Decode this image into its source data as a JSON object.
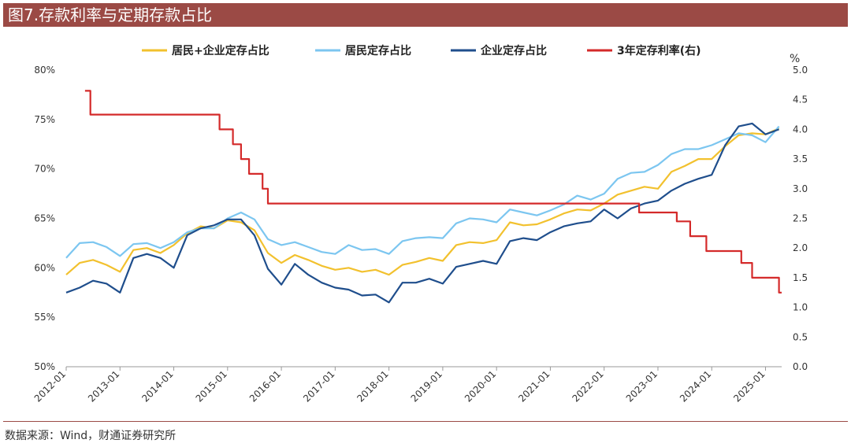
{
  "header": {
    "title": "图7.存款利率与定期存款占比"
  },
  "footer": {
    "source": "数据来源：Wind，财通证券研究所"
  },
  "chart_data": {
    "type": "line",
    "title": "图7.存款利率与定期存款占比",
    "x_ticks": [
      "2012-01",
      "2013-01",
      "2014-01",
      "2015-01",
      "2016-01",
      "2017-01",
      "2018-01",
      "2019-01",
      "2020-01",
      "2021-01",
      "2022-01",
      "2023-01",
      "2024-01",
      "2025-01"
    ],
    "x_range": [
      2012.0,
      2025.3
    ],
    "y_left": {
      "ticks": [
        "50%",
        "55%",
        "60%",
        "65%",
        "70%",
        "75%",
        "80%"
      ],
      "min": 50,
      "max": 80
    },
    "y_right": {
      "ticks": [
        "0.0",
        "0.5",
        "1.0",
        "1.5",
        "2.0",
        "2.5",
        "3.0",
        "3.5",
        "4.0",
        "4.5",
        "5.0"
      ],
      "min": 0,
      "max": 5,
      "unit": "%"
    },
    "grid": false,
    "legend_position": "top",
    "series": [
      {
        "name": "居民+企业定存占比",
        "axis": "left",
        "color": "#f2c12e",
        "x": [
          2012.0,
          2012.25,
          2012.5,
          2012.75,
          2013.0,
          2013.25,
          2013.5,
          2013.75,
          2014.0,
          2014.25,
          2014.5,
          2014.75,
          2015.0,
          2015.25,
          2015.5,
          2015.75,
          2016.0,
          2016.25,
          2016.5,
          2016.75,
          2017.0,
          2017.25,
          2017.5,
          2017.75,
          2018.0,
          2018.25,
          2018.5,
          2018.75,
          2019.0,
          2019.25,
          2019.5,
          2019.75,
          2020.0,
          2020.25,
          2020.5,
          2020.75,
          2021.0,
          2021.25,
          2021.5,
          2021.75,
          2022.0,
          2022.25,
          2022.5,
          2022.75,
          2023.0,
          2023.25,
          2023.5,
          2023.75,
          2024.0,
          2024.25,
          2024.5,
          2024.75,
          2025.0,
          2025.25
        ],
        "values": [
          59.3,
          60.5,
          60.8,
          60.3,
          59.6,
          61.8,
          62.0,
          61.5,
          62.3,
          63.5,
          64.2,
          64.0,
          64.8,
          64.6,
          63.8,
          61.5,
          60.5,
          61.3,
          60.8,
          60.2,
          59.8,
          60.0,
          59.6,
          59.8,
          59.3,
          60.3,
          60.6,
          61.0,
          60.7,
          62.3,
          62.6,
          62.5,
          62.8,
          64.6,
          64.3,
          64.4,
          64.9,
          65.5,
          65.9,
          65.8,
          66.5,
          67.4,
          67.8,
          68.2,
          68.0,
          69.7,
          70.3,
          71.0,
          71.0,
          72.3,
          73.4,
          73.6,
          73.5,
          74.1
        ]
      },
      {
        "name": "居民定存占比",
        "axis": "left",
        "color": "#7cc6f0",
        "x": [
          2012.0,
          2012.25,
          2012.5,
          2012.75,
          2013.0,
          2013.25,
          2013.5,
          2013.75,
          2014.0,
          2014.25,
          2014.5,
          2014.75,
          2015.0,
          2015.25,
          2015.5,
          2015.75,
          2016.0,
          2016.25,
          2016.5,
          2016.75,
          2017.0,
          2017.25,
          2017.5,
          2017.75,
          2018.0,
          2018.25,
          2018.5,
          2018.75,
          2019.0,
          2019.25,
          2019.5,
          2019.75,
          2020.0,
          2020.25,
          2020.5,
          2020.75,
          2021.0,
          2021.25,
          2021.5,
          2021.75,
          2022.0,
          2022.25,
          2022.5,
          2022.75,
          2023.0,
          2023.25,
          2023.5,
          2023.75,
          2024.0,
          2024.25,
          2024.5,
          2024.75,
          2025.0,
          2025.25
        ],
        "values": [
          61.0,
          62.5,
          62.6,
          62.1,
          61.2,
          62.4,
          62.5,
          62.0,
          62.6,
          63.6,
          64.0,
          64.0,
          65.0,
          65.6,
          64.9,
          62.9,
          62.3,
          62.6,
          62.1,
          61.6,
          61.4,
          62.3,
          61.8,
          61.9,
          61.4,
          62.7,
          63.0,
          63.1,
          63.0,
          64.5,
          65.0,
          64.9,
          64.6,
          65.9,
          65.6,
          65.3,
          65.8,
          66.4,
          67.3,
          66.9,
          67.5,
          69.0,
          69.6,
          69.7,
          70.4,
          71.5,
          72.0,
          72.0,
          72.4,
          73.0,
          73.6,
          73.4,
          72.7,
          74.3
        ]
      },
      {
        "name": "企业定存占比",
        "axis": "left",
        "color": "#1f4e8c",
        "x": [
          2012.0,
          2012.25,
          2012.5,
          2012.75,
          2013.0,
          2013.25,
          2013.5,
          2013.75,
          2014.0,
          2014.25,
          2014.5,
          2014.75,
          2015.0,
          2015.25,
          2015.5,
          2015.75,
          2016.0,
          2016.25,
          2016.5,
          2016.75,
          2017.0,
          2017.25,
          2017.5,
          2017.75,
          2018.0,
          2018.25,
          2018.5,
          2018.75,
          2019.0,
          2019.25,
          2019.5,
          2019.75,
          2020.0,
          2020.25,
          2020.5,
          2020.75,
          2021.0,
          2021.25,
          2021.5,
          2021.75,
          2022.0,
          2022.25,
          2022.5,
          2022.75,
          2023.0,
          2023.25,
          2023.5,
          2023.75,
          2024.0,
          2024.25,
          2024.5,
          2024.75,
          2025.0,
          2025.25
        ],
        "values": [
          57.5,
          58.0,
          58.7,
          58.4,
          57.5,
          61.0,
          61.4,
          61.0,
          60.0,
          63.3,
          64.0,
          64.3,
          64.9,
          64.9,
          63.3,
          59.9,
          58.3,
          60.4,
          59.3,
          58.5,
          58.0,
          57.8,
          57.2,
          57.3,
          56.5,
          58.5,
          58.5,
          58.9,
          58.4,
          60.1,
          60.4,
          60.7,
          60.4,
          62.7,
          63.0,
          62.8,
          63.6,
          64.2,
          64.5,
          64.7,
          65.9,
          65.0,
          66.0,
          66.5,
          66.8,
          67.8,
          68.5,
          69.0,
          69.4,
          72.4,
          74.3,
          74.6,
          73.5,
          74.0
        ]
      },
      {
        "name": "3年定存利率(右)",
        "axis": "right",
        "color": "#d42a2a",
        "step": true,
        "x": [
          2012.35,
          2012.45,
          2014.85,
          2015.1,
          2015.25,
          2015.4,
          2015.65,
          2015.75,
          2022.65,
          2023.35,
          2023.6,
          2023.9,
          2024.55,
          2024.75,
          2025.25,
          2025.3
        ],
        "values": [
          4.65,
          4.25,
          4.0,
          3.75,
          3.5,
          3.25,
          3.0,
          2.75,
          2.6,
          2.45,
          2.2,
          1.95,
          1.75,
          1.5,
          1.25,
          1.25
        ]
      }
    ]
  }
}
